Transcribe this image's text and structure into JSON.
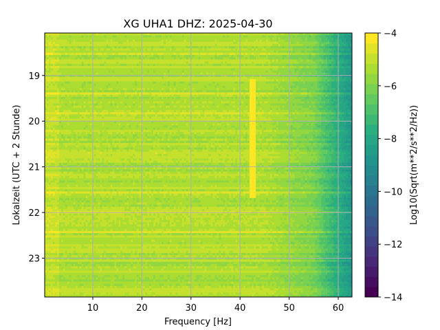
{
  "chart_data": {
    "type": "heatmap",
    "title": "XG UHA1  DHZ: 2025-04-30",
    "xlabel": "Frequency [Hz]",
    "ylabel": "Lokalzeit (UTC + 2 Stunde)",
    "xlim": [
      0.2,
      62.8
    ],
    "ylim": [
      23.85,
      18.07
    ],
    "y_inverted": true,
    "xticks": [
      10,
      20,
      30,
      40,
      50,
      60
    ],
    "xtick_labels": [
      "10",
      "20",
      "30",
      "40",
      "50",
      "60"
    ],
    "yticks": [
      19,
      20,
      21,
      22,
      23
    ],
    "ytick_labels": [
      "19",
      "20",
      "21",
      "22",
      "23"
    ],
    "grid": true,
    "colormap": "viridis",
    "colorbar": {
      "label": "Log10(Sqrt(m**2/s**2/Hz))",
      "range": [
        -14,
        -4
      ],
      "ticks": [
        -14,
        -12,
        -10,
        -8,
        -6,
        -4
      ],
      "tick_labels": [
        "−14",
        "−12",
        "−10",
        "−8",
        "−6",
        "−4"
      ],
      "levels": 26
    },
    "description_values": {
      "low_freq_level": -5.3,
      "high_freq_level": -8.2,
      "high_freq_start_hz": 55,
      "narrow_line_hz": 42.5,
      "narrow_line_level": -4.3,
      "narrow_line_time_range": [
        19.1,
        21.7
      ]
    }
  }
}
